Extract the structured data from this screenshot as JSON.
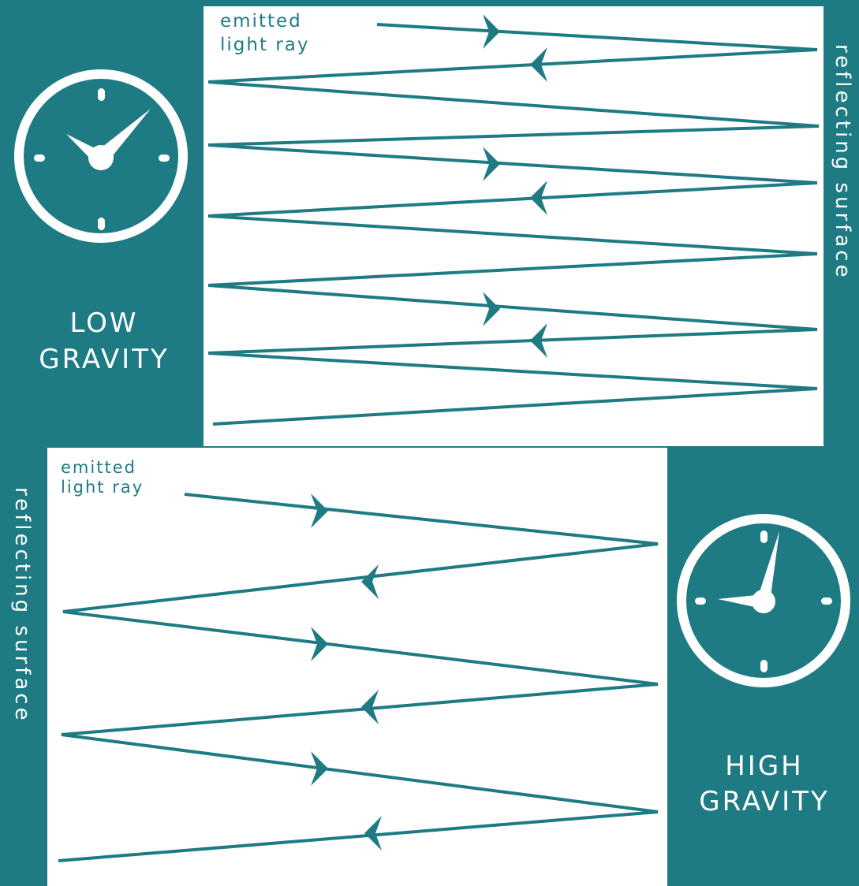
{
  "colors": {
    "teal": "#1f7b83",
    "white": "#ffffff"
  },
  "top_panel": {
    "gravity_label_line1": "LOW",
    "gravity_label_line2": "GRAVITY",
    "emitted_line1": "emitted",
    "emitted_line2": "light ray",
    "surface_label": "reflecting surface",
    "clock": {
      "hour_hand": "about 10",
      "minute_hand": "about 7"
    }
  },
  "bottom_panel": {
    "gravity_label_line1": "HIGH",
    "gravity_label_line2": "GRAVITY",
    "emitted_line1": "emitted",
    "emitted_line2": "light ray",
    "surface_label": "reflecting surface",
    "clock": {
      "hour_hand": "9",
      "minute_hand": "1"
    }
  }
}
